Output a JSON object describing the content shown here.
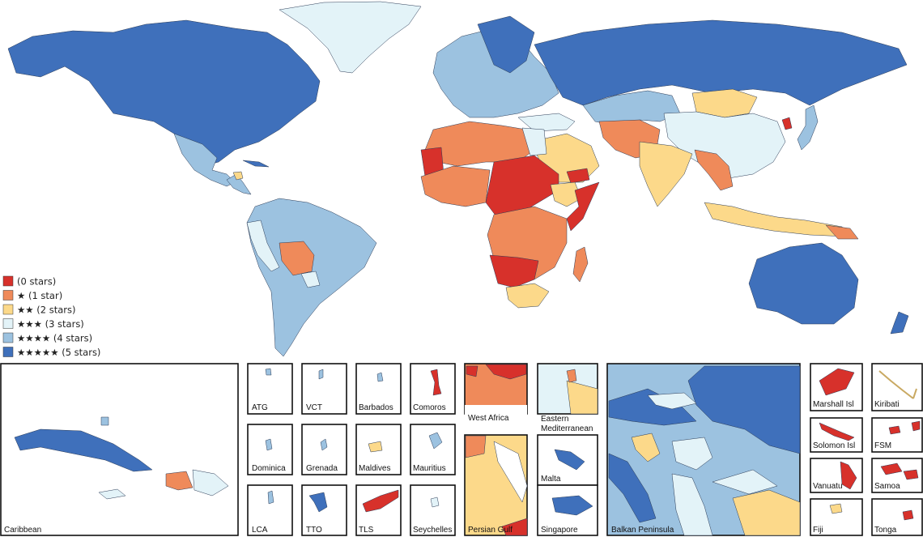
{
  "colors": {
    "s0": "#d7312b",
    "s1": "#ef8a5a",
    "s2": "#fcd98a",
    "s3": "#e3f3f8",
    "s4": "#9cc2e0",
    "s5": "#3f70bb"
  },
  "legend": [
    {
      "key": "s0",
      "label": "(0 stars)"
    },
    {
      "key": "s1",
      "label": "★ (1 star)"
    },
    {
      "key": "s2",
      "label": "★★ (2 stars)"
    },
    {
      "key": "s3",
      "label": "★★★ (3 stars)"
    },
    {
      "key": "s4",
      "label": "★★★★ (4 stars)"
    },
    {
      "key": "s5",
      "label": "★★★★★ (5 stars)"
    }
  ],
  "insets": {
    "caribbean": "Caribbean",
    "atg": "ATG",
    "vct": "VCT",
    "barbados": "Barbados",
    "comoros": "Comoros",
    "dominica": "Dominica",
    "grenada": "Grenada",
    "maldives": "Maldives",
    "mauritius": "Mauritius",
    "lca": "LCA",
    "tto": "TTO",
    "tls": "TLS",
    "seychelles": "Seychelles",
    "west_africa": "West Africa",
    "east_med_1": "Eastern",
    "east_med_2": "Mediterranean",
    "persian_gulf": "Persian Gulf",
    "malta": "Malta",
    "singapore": "Singapore",
    "balkan": "Balkan Peninsula",
    "marshall": "Marshall Isl",
    "kiribati": "Kiribati",
    "solomon": "Solomon Isl",
    "fsm": "FSM",
    "vanuatu": "Vanuatu",
    "samoa": "Samoa",
    "fiji": "Fiji",
    "tonga": "Tonga"
  }
}
